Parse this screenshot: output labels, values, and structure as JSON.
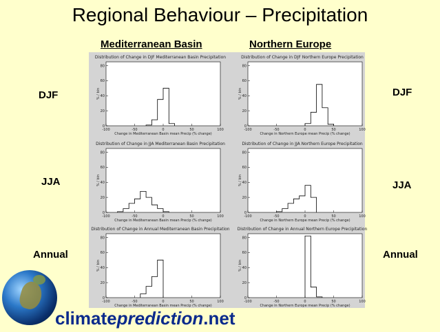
{
  "slide": {
    "title": "Regional Behaviour – Precipitation",
    "columns": [
      "Mediterranean Basin",
      "Northern Europe"
    ],
    "rows_left": [
      "DJF",
      "JJA",
      "Annual"
    ],
    "rows_right": [
      "DJF",
      "JJA",
      "Annual"
    ],
    "logo": {
      "part1": "climate",
      "part2": "prediction",
      "part3": ".net"
    }
  },
  "chart_data": [
    {
      "id": "med-djf",
      "type": "bar",
      "title": "Distribution of Change in DJF Mediterranean Basin Precipitation",
      "xlabel": "Change in Mediterranean Basin mean Precip (% change)",
      "ylabel": "% / bin",
      "xlim": [
        -100,
        100
      ],
      "ylim": [
        0,
        85
      ],
      "xticks": [
        -100,
        -50,
        0,
        50,
        100
      ],
      "yticks": [
        0,
        20,
        40,
        60,
        80
      ],
      "bin_edges": [
        -30,
        -20,
        -10,
        0,
        10,
        20
      ],
      "values": [
        1,
        8,
        35,
        50,
        3
      ]
    },
    {
      "id": "ne-djf",
      "type": "bar",
      "title": "Distribution of Change in DJF Northern Europe Precipitation",
      "xlabel": "Change in Northern Europe mean Precip (% change)",
      "ylabel": "% / bin",
      "xlim": [
        -100,
        100
      ],
      "ylim": [
        0,
        85
      ],
      "xticks": [
        -100,
        -50,
        0,
        50,
        100
      ],
      "yticks": [
        0,
        20,
        40,
        60,
        80
      ],
      "bin_edges": [
        0,
        10,
        20,
        30,
        40,
        50
      ],
      "values": [
        3,
        18,
        55,
        24,
        2
      ]
    },
    {
      "id": "med-jja",
      "type": "bar",
      "title": "Distribution of Change in JJA Mediterranean Basin Precipitation",
      "xlabel": "Change in Mediterranean Basin mean Precip (% change)",
      "ylabel": "% / bin",
      "xlim": [
        -100,
        100
      ],
      "ylim": [
        0,
        85
      ],
      "xticks": [
        -100,
        -50,
        0,
        50,
        100
      ],
      "yticks": [
        0,
        20,
        40,
        60,
        80
      ],
      "bin_edges": [
        -80,
        -70,
        -60,
        -50,
        -40,
        -30,
        -20,
        -10,
        0,
        10
      ],
      "values": [
        1,
        5,
        12,
        18,
        28,
        20,
        10,
        5,
        1
      ]
    },
    {
      "id": "ne-jja",
      "type": "bar",
      "title": "Distribution of Change in JJA Northern Europe Precipitation",
      "xlabel": "Change in Northern Europe mean Precip (% change)",
      "ylabel": "% / bin",
      "xlim": [
        -100,
        100
      ],
      "ylim": [
        0,
        85
      ],
      "xticks": [
        -100,
        -50,
        0,
        50,
        100
      ],
      "yticks": [
        0,
        20,
        40,
        60,
        80
      ],
      "bin_edges": [
        -50,
        -40,
        -30,
        -20,
        -10,
        0,
        10,
        20
      ],
      "values": [
        1,
        5,
        12,
        18,
        22,
        36,
        20
      ]
    },
    {
      "id": "med-ann",
      "type": "bar",
      "title": "Distribution of Change in Annual Mediterranean Basin Precipitation",
      "xlabel": "Change in Mediterranean Basin mean Precip (% change)",
      "ylabel": "% / bin",
      "xlim": [
        -100,
        100
      ],
      "ylim": [
        0,
        85
      ],
      "xticks": [
        -100,
        -50,
        0,
        50,
        100
      ],
      "yticks": [
        0,
        20,
        40,
        60,
        80
      ],
      "bin_edges": [
        -40,
        -30,
        -20,
        -10,
        0
      ],
      "values": [
        5,
        15,
        28,
        50
      ]
    },
    {
      "id": "ne-ann",
      "type": "bar",
      "title": "Distribution of Change in Annual Northern Europe Precipitation",
      "xlabel": "Change in Northern Europe mean Precip (% change)",
      "ylabel": "% / bin",
      "xlim": [
        -100,
        100
      ],
      "ylim": [
        0,
        85
      ],
      "xticks": [
        -100,
        -50,
        0,
        50,
        100
      ],
      "yticks": [
        0,
        20,
        40,
        60,
        80
      ],
      "bin_edges": [
        0,
        10,
        20,
        30
      ],
      "values": [
        82,
        14,
        1
      ]
    }
  ]
}
